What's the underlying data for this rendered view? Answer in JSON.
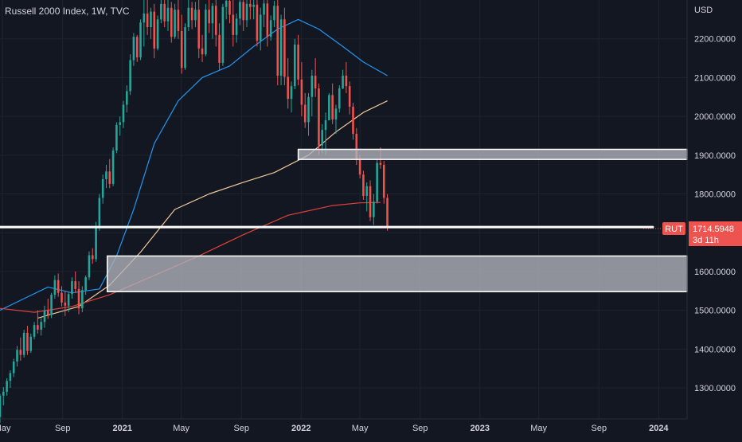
{
  "header": {
    "title": "Russell 2000 Index, 1W, TVC",
    "currency": "USD"
  },
  "price_badge": {
    "symbol": "RUT",
    "price": "1714.5948",
    "countdown": "3d 11h"
  },
  "colors": {
    "background": "#131722",
    "grid": "#1f2330",
    "up": "#26a69a",
    "down": "#ef5350",
    "ma_fast": "#2196f3",
    "ma_mid": "#f0c89a",
    "ma_slow": "#e0413a",
    "zone_fill": "#b2b5be",
    "zone_border": "#ffffff",
    "text": "#d1d4dc"
  },
  "chart_data": {
    "type": "candlestick",
    "title": "Russell 2000 Index, 1W, TVC",
    "ylabel": "USD",
    "ylim": [
      1220,
      2300
    ],
    "y_ticks": [
      "1300.0000",
      "1400.0000",
      "1500.0000",
      "1600.0000",
      "1700.0000",
      "1800.0000",
      "1900.0000",
      "2000.0000",
      "2100.0000",
      "2200.0000"
    ],
    "x_ticks": [
      {
        "label": "May",
        "date": "2020-05-01"
      },
      {
        "label": "Sep",
        "date": "2020-09-01"
      },
      {
        "label": "2021",
        "date": "2021-01-01"
      },
      {
        "label": "May",
        "date": "2021-05-01"
      },
      {
        "label": "Sep",
        "date": "2021-09-01"
      },
      {
        "label": "2022",
        "date": "2022-01-01"
      },
      {
        "label": "May",
        "date": "2022-05-01"
      },
      {
        "label": "Sep",
        "date": "2022-09-01"
      },
      {
        "label": "2023",
        "date": "2023-01-01"
      },
      {
        "label": "May",
        "date": "2023-05-01"
      },
      {
        "label": "Sep",
        "date": "2023-09-01"
      },
      {
        "label": "2024",
        "date": "2024-01-01"
      }
    ],
    "xlim": [
      "2020-04-26",
      "2024-02-28"
    ],
    "candle_series": {
      "start_date": "2020-04-26",
      "interval_days": 7,
      "ohlc": [
        [
          1225,
          1285,
          1210,
          1280
        ],
        [
          1280,
          1302,
          1255,
          1290
        ],
        [
          1290,
          1325,
          1280,
          1318
        ],
        [
          1318,
          1345,
          1300,
          1338
        ],
        [
          1338,
          1375,
          1328,
          1368
        ],
        [
          1368,
          1408,
          1355,
          1398
        ],
        [
          1398,
          1430,
          1370,
          1385
        ],
        [
          1385,
          1450,
          1378,
          1442
        ],
        [
          1442,
          1460,
          1385,
          1395
        ],
        [
          1395,
          1440,
          1390,
          1432
        ],
        [
          1432,
          1470,
          1425,
          1462
        ],
        [
          1462,
          1500,
          1440,
          1450
        ],
        [
          1450,
          1480,
          1435,
          1470
        ],
        [
          1470,
          1512,
          1455,
          1500
        ],
        [
          1500,
          1530,
          1478,
          1488
        ],
        [
          1488,
          1545,
          1480,
          1540
        ],
        [
          1540,
          1590,
          1530,
          1578
        ],
        [
          1578,
          1595,
          1535,
          1545
        ],
        [
          1545,
          1562,
          1510,
          1520
        ],
        [
          1520,
          1550,
          1485,
          1512
        ],
        [
          1512,
          1548,
          1495,
          1542
        ],
        [
          1542,
          1585,
          1530,
          1575
        ],
        [
          1575,
          1600,
          1545,
          1555
        ],
        [
          1555,
          1575,
          1490,
          1505
        ],
        [
          1505,
          1562,
          1495,
          1552
        ],
        [
          1552,
          1590,
          1540,
          1585
        ],
        [
          1585,
          1652,
          1578,
          1642
        ],
        [
          1642,
          1660,
          1620,
          1632
        ],
        [
          1632,
          1728,
          1625,
          1718
        ],
        [
          1718,
          1800,
          1705,
          1790
        ],
        [
          1790,
          1850,
          1775,
          1838
        ],
        [
          1838,
          1875,
          1815,
          1858
        ],
        [
          1858,
          1890,
          1815,
          1826
        ],
        [
          1826,
          1920,
          1820,
          1912
        ],
        [
          1912,
          1985,
          1905,
          1978
        ],
        [
          1978,
          2000,
          1950,
          1985
        ],
        [
          1985,
          2040,
          1970,
          2030
        ],
        [
          2030,
          2080,
          2010,
          2065
        ],
        [
          2065,
          2160,
          2055,
          2145
        ],
        [
          2145,
          2215,
          2130,
          2205
        ],
        [
          2205,
          2210,
          2140,
          2152
        ],
        [
          2152,
          2250,
          2145,
          2242
        ],
        [
          2242,
          2300,
          2180,
          2265
        ],
        [
          2265,
          2300,
          2210,
          2230
        ],
        [
          2230,
          2280,
          2200,
          2270
        ],
        [
          2270,
          2290,
          2150,
          2175
        ],
        [
          2175,
          2260,
          2170,
          2250
        ],
        [
          2250,
          2300,
          2240,
          2290
        ],
        [
          2290,
          2300,
          2230,
          2245
        ],
        [
          2245,
          2300,
          2220,
          2280
        ],
        [
          2280,
          2295,
          2190,
          2205
        ],
        [
          2205,
          2290,
          2200,
          2275
        ],
        [
          2275,
          2300,
          2200,
          2220
        ],
        [
          2220,
          2262,
          2110,
          2125
        ],
        [
          2125,
          2240,
          2120,
          2230
        ],
        [
          2230,
          2300,
          2220,
          2280
        ],
        [
          2280,
          2295,
          2225,
          2248
        ],
        [
          2248,
          2295,
          2230,
          2275
        ],
        [
          2275,
          2300,
          2150,
          2175
        ],
        [
          2175,
          2210,
          2140,
          2160
        ],
        [
          2160,
          2290,
          2155,
          2275
        ],
        [
          2275,
          2300,
          2215,
          2240
        ],
        [
          2240,
          2292,
          2200,
          2285
        ],
        [
          2285,
          2300,
          2180,
          2210
        ],
        [
          2210,
          2240,
          2120,
          2138
        ],
        [
          2138,
          2290,
          2130,
          2282
        ],
        [
          2282,
          2300,
          2250,
          2298
        ],
        [
          2298,
          2300,
          2240,
          2262
        ],
        [
          2262,
          2300,
          2180,
          2210
        ],
        [
          2210,
          2265,
          2190,
          2252
        ],
        [
          2252,
          2300,
          2235,
          2295
        ],
        [
          2295,
          2300,
          2220,
          2248
        ],
        [
          2248,
          2300,
          2230,
          2290
        ],
        [
          2290,
          2300,
          2250,
          2282
        ],
        [
          2282,
          2300,
          2250,
          2288
        ],
        [
          2288,
          2300,
          2180,
          2195
        ],
        [
          2195,
          2280,
          2170,
          2262
        ],
        [
          2262,
          2300,
          2230,
          2291
        ],
        [
          2291,
          2300,
          2180,
          2205
        ],
        [
          2205,
          2260,
          2195,
          2248
        ],
        [
          2248,
          2298,
          2230,
          2285
        ],
        [
          2285,
          2300,
          2080,
          2105
        ],
        [
          2105,
          2262,
          2080,
          2250
        ],
        [
          2250,
          2280,
          2080,
          2102
        ],
        [
          2102,
          2150,
          2020,
          2045
        ],
        [
          2045,
          2090,
          2010,
          2078
        ],
        [
          2078,
          2200,
          2070,
          2185
        ],
        [
          2185,
          2210,
          2080,
          2095
        ],
        [
          2095,
          2140,
          2000,
          2030
        ],
        [
          2030,
          2060,
          1970,
          1985
        ],
        [
          1985,
          2060,
          1950,
          2050
        ],
        [
          2050,
          2120,
          2000,
          2105
        ],
        [
          2105,
          2150,
          2050,
          2072
        ],
        [
          2072,
          2085,
          1900,
          1925
        ],
        [
          1925,
          1980,
          1905,
          1965
        ],
        [
          1965,
          2010,
          1900,
          1990
        ],
        [
          1990,
          2060,
          1990,
          2055
        ],
        [
          2055,
          2085,
          1980,
          1992
        ],
        [
          1992,
          2030,
          1955,
          2020
        ],
        [
          2020,
          2080,
          2010,
          2072
        ],
        [
          2072,
          2120,
          2070,
          2105
        ],
        [
          2105,
          2140,
          2060,
          2078
        ],
        [
          2078,
          2090,
          2005,
          2025
        ],
        [
          2025,
          2035,
          1940,
          1955
        ],
        [
          1955,
          1970,
          1875,
          1890
        ],
        [
          1890,
          1900,
          1840,
          1850
        ],
        [
          1850,
          1860,
          1785,
          1795
        ],
        [
          1795,
          1830,
          1755,
          1820
        ],
        [
          1820,
          1835,
          1730,
          1740
        ],
        [
          1740,
          1800,
          1720,
          1780
        ],
        [
          1780,
          1890,
          1775,
          1880
        ],
        [
          1880,
          1920,
          1865,
          1875
        ],
        [
          1875,
          1885,
          1775,
          1790
        ],
        [
          1790,
          1800,
          1705,
          1714
        ]
      ]
    },
    "series": [
      {
        "id": "ma_fast",
        "kind": "line",
        "points": [
          [
            "2020-04-26",
            1500
          ],
          [
            "2020-06-14",
            1530
          ],
          [
            "2020-08-02",
            1560
          ],
          [
            "2020-09-20",
            1545
          ],
          [
            "2020-11-15",
            1555
          ],
          [
            "2020-12-20",
            1640
          ],
          [
            "2021-01-24",
            1760
          ],
          [
            "2021-03-07",
            1930
          ],
          [
            "2021-04-25",
            2040
          ],
          [
            "2021-06-13",
            2100
          ],
          [
            "2021-08-08",
            2130
          ],
          [
            "2021-09-26",
            2180
          ],
          [
            "2021-11-14",
            2225
          ],
          [
            "2021-12-26",
            2250
          ],
          [
            "2022-02-06",
            2225
          ],
          [
            "2022-03-27",
            2180
          ],
          [
            "2022-05-08",
            2140
          ],
          [
            "2022-06-26",
            2105
          ]
        ]
      },
      {
        "id": "ma_mid",
        "kind": "line",
        "points": [
          [
            "2020-07-12",
            1480
          ],
          [
            "2020-10-04",
            1510
          ],
          [
            "2020-12-06",
            1565
          ],
          [
            "2021-02-07",
            1650
          ],
          [
            "2021-04-18",
            1760
          ],
          [
            "2021-06-27",
            1800
          ],
          [
            "2021-09-05",
            1830
          ],
          [
            "2021-11-07",
            1855
          ],
          [
            "2022-01-16",
            1900
          ],
          [
            "2022-03-13",
            1960
          ],
          [
            "2022-05-08",
            2010
          ],
          [
            "2022-06-26",
            2040
          ]
        ]
      },
      {
        "id": "ma_slow",
        "kind": "line",
        "points": [
          [
            "2020-04-26",
            1505
          ],
          [
            "2020-07-05",
            1495
          ],
          [
            "2020-09-20",
            1510
          ],
          [
            "2020-12-06",
            1540
          ],
          [
            "2021-03-07",
            1590
          ],
          [
            "2021-06-06",
            1640
          ],
          [
            "2021-09-05",
            1695
          ],
          [
            "2021-12-05",
            1745
          ],
          [
            "2022-03-06",
            1770
          ],
          [
            "2022-05-01",
            1777
          ],
          [
            "2022-06-12",
            1778
          ]
        ]
      }
    ],
    "horizontal_line": {
      "y": 1714.5948,
      "from": "2020-04-26",
      "to": "2023-12-20"
    },
    "zones": [
      {
        "from": "2021-12-26",
        "to": "2024-02-28",
        "y1": 1915,
        "y2": 1889
      },
      {
        "from": "2020-12-01",
        "to": "2024-02-28",
        "y1": 1640,
        "y2": 1548
      }
    ]
  }
}
